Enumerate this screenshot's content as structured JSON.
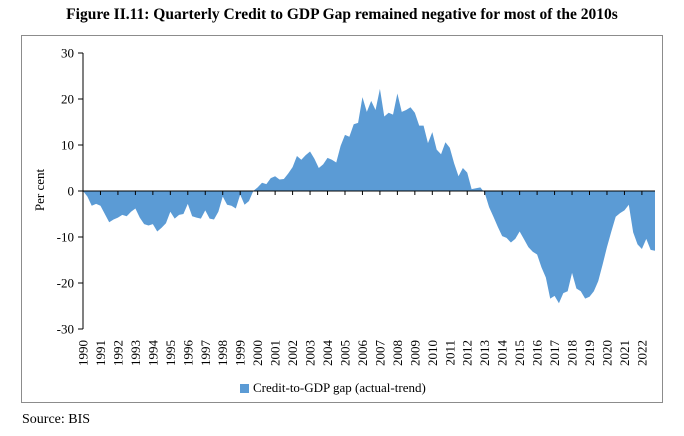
{
  "title": "Figure II.11: Quarterly Credit to GDP Gap remained negative for most of the 2010s",
  "source": "Source: BIS",
  "chart_data": {
    "type": "area",
    "ylabel": "Per cent",
    "ylim": [
      -30,
      30
    ],
    "yticks": [
      30,
      20,
      10,
      0,
      -10,
      -20,
      -30
    ],
    "x_tick_labels": [
      "1990",
      "1991",
      "1992",
      "1993",
      "1994",
      "1995",
      "1996",
      "1997",
      "1998",
      "1999",
      "2000",
      "2001",
      "2002",
      "2003",
      "2004",
      "2005",
      "2006",
      "2007",
      "2008",
      "2009",
      "2010",
      "2011",
      "2012",
      "2013",
      "2014",
      "2015",
      "2016",
      "2017",
      "2018",
      "2019",
      "2020",
      "2021",
      "2022"
    ],
    "x_start": 1990.0,
    "x_end": 2022.75,
    "color": "#5b9bd5",
    "legend": "Credit-to-GDP gap (actual-trend)",
    "legend_position": "bottom",
    "series": [
      {
        "name": "Credit-to-GDP gap (actual-trend)",
        "x": [
          1990.0,
          1990.25,
          1990.5,
          1990.75,
          1991.0,
          1991.25,
          1991.5,
          1991.75,
          1992.0,
          1992.25,
          1992.5,
          1992.75,
          1993.0,
          1993.25,
          1993.5,
          1993.75,
          1994.0,
          1994.25,
          1994.5,
          1994.75,
          1995.0,
          1995.25,
          1995.5,
          1995.75,
          1996.0,
          1996.25,
          1996.5,
          1996.75,
          1997.0,
          1997.25,
          1997.5,
          1997.75,
          1998.0,
          1998.25,
          1998.5,
          1998.75,
          1999.0,
          1999.25,
          1999.5,
          1999.75,
          2000.0,
          2000.25,
          2000.5,
          2000.75,
          2001.0,
          2001.25,
          2001.5,
          2001.75,
          2002.0,
          2002.25,
          2002.5,
          2002.75,
          2003.0,
          2003.25,
          2003.5,
          2003.75,
          2004.0,
          2004.25,
          2004.5,
          2004.75,
          2005.0,
          2005.25,
          2005.5,
          2005.75,
          2006.0,
          2006.25,
          2006.5,
          2006.75,
          2007.0,
          2007.25,
          2007.5,
          2007.75,
          2008.0,
          2008.25,
          2008.5,
          2008.75,
          2009.0,
          2009.25,
          2009.5,
          2009.75,
          2010.0,
          2010.25,
          2010.5,
          2010.75,
          2011.0,
          2011.25,
          2011.5,
          2011.75,
          2012.0,
          2012.25,
          2012.5,
          2012.75,
          2013.0,
          2013.25,
          2013.5,
          2013.75,
          2014.0,
          2014.25,
          2014.5,
          2014.75,
          2015.0,
          2015.25,
          2015.5,
          2015.75,
          2016.0,
          2016.25,
          2016.5,
          2016.75,
          2017.0,
          2017.25,
          2017.5,
          2017.75,
          2018.0,
          2018.25,
          2018.5,
          2018.75,
          2019.0,
          2019.25,
          2019.5,
          2019.75,
          2020.0,
          2020.25,
          2020.5,
          2020.75,
          2021.0,
          2021.25,
          2021.5,
          2021.75,
          2022.0,
          2022.25,
          2022.5,
          2022.75
        ],
        "values": [
          0.0,
          -1.2,
          -3.2,
          -2.8,
          -3.2,
          -5.0,
          -6.8,
          -6.2,
          -5.8,
          -5.2,
          -5.5,
          -4.5,
          -3.8,
          -5.8,
          -7.2,
          -7.5,
          -7.2,
          -8.8,
          -8.0,
          -7.0,
          -4.5,
          -6.0,
          -5.2,
          -5.0,
          -2.8,
          -5.5,
          -5.8,
          -6.0,
          -4.2,
          -6.0,
          -6.2,
          -4.5,
          -1.2,
          -3.0,
          -3.2,
          -3.8,
          -0.8,
          -3.0,
          -2.2,
          0.0,
          0.8,
          1.8,
          1.5,
          2.8,
          3.2,
          2.5,
          2.6,
          3.8,
          5.2,
          7.6,
          6.8,
          7.8,
          8.6,
          7.0,
          5.0,
          5.8,
          7.2,
          6.8,
          6.2,
          9.8,
          12.2,
          11.8,
          14.5,
          14.8,
          20.4,
          17.2,
          19.6,
          17.6,
          22.2,
          16.2,
          17.0,
          16.6,
          21.2,
          17.2,
          17.6,
          18.2,
          17.0,
          14.2,
          14.2,
          10.4,
          12.8,
          9.0,
          8.0,
          10.6,
          9.4,
          6.0,
          3.2,
          5.0,
          4.0,
          0.4,
          0.6,
          0.8,
          -0.4,
          -3.5,
          -5.6,
          -7.8,
          -9.8,
          -10.2,
          -11.2,
          -10.4,
          -8.8,
          -10.5,
          -12.2,
          -13.2,
          -13.8,
          -16.6,
          -18.8,
          -23.4,
          -22.8,
          -24.4,
          -22.2,
          -21.8,
          -17.8,
          -21.2,
          -21.8,
          -23.4,
          -23.0,
          -21.8,
          -19.6,
          -16.0,
          -12.2,
          -8.8,
          -5.6,
          -4.8,
          -4.2,
          -3.0,
          -9.0,
          -11.6,
          -12.6,
          -10.4,
          -12.8,
          -13.0
        ]
      }
    ]
  }
}
